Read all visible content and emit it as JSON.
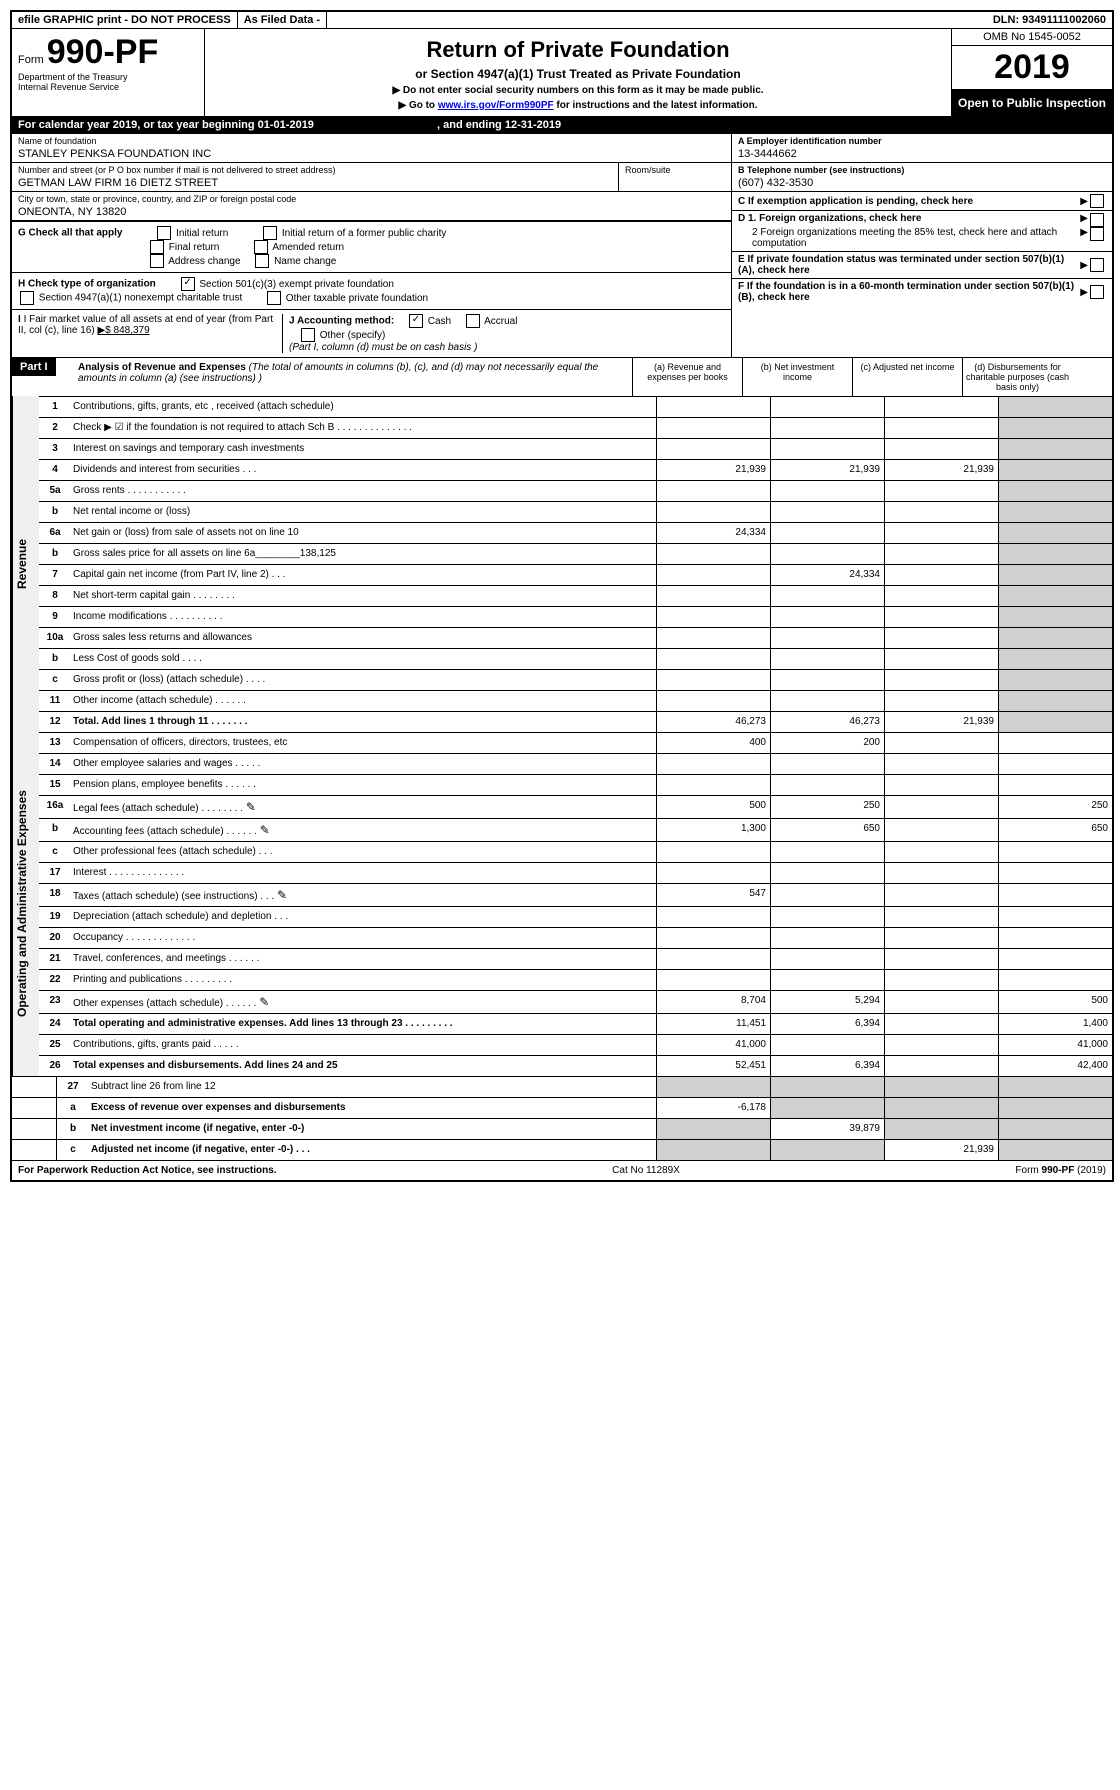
{
  "top_bar": {
    "efile": "efile GRAPHIC print - DO NOT PROCESS",
    "as_filed": "As Filed Data -",
    "dln": "DLN: 93491111002060"
  },
  "header": {
    "form_prefix": "Form",
    "form_number": "990-PF",
    "dept1": "Department of the Treasury",
    "dept2": "Internal Revenue Service",
    "title": "Return of Private Foundation",
    "subtitle": "or Section 4947(a)(1) Trust Treated as Private Foundation",
    "instruction1": "▶ Do not enter social security numbers on this form as it may be made public.",
    "instruction2": "▶ Go to ",
    "instruction_link": "www.irs.gov/Form990PF",
    "instruction3": " for instructions and the latest information.",
    "omb": "OMB No 1545-0052",
    "year": "2019",
    "open_public": "Open to Public Inspection"
  },
  "calendar": {
    "text1": "For calendar year 2019, or tax year beginning ",
    "begin": "01-01-2019",
    "text2": ", and ending ",
    "end": "12-31-2019"
  },
  "info": {
    "name_label": "Name of foundation",
    "name": "STANLEY PENKSA FOUNDATION INC",
    "street_label": "Number and street (or P O  box number if mail is not delivered to street address)",
    "street": "GETMAN LAW FIRM 16 DIETZ STREET",
    "room_label": "Room/suite",
    "city_label": "City or town, state or province, country, and ZIP or foreign postal code",
    "city": "ONEONTA, NY  13820",
    "ein_label": "A Employer identification number",
    "ein": "13-3444662",
    "phone_label": "B Telephone number (see instructions)",
    "phone": "(607) 432-3530",
    "c_label": "C If exemption application is pending, check here",
    "d1_label": "D 1. Foreign organizations, check here",
    "d2_label": "2 Foreign organizations meeting the 85% test, check here and attach computation",
    "e_label": "E If private foundation status was terminated under section 507(b)(1)(A), check here",
    "f_label": "F If the foundation is in a 60-month termination under section 507(b)(1)(B), check here"
  },
  "section_g": {
    "label": "G Check all that apply",
    "opts": [
      "Initial return",
      "Initial return of a former public charity",
      "Final return",
      "Amended return",
      "Address change",
      "Name change"
    ]
  },
  "section_h": {
    "label": "H Check type of organization",
    "opt1": "Section 501(c)(3) exempt private foundation",
    "opt2": "Section 4947(a)(1) nonexempt charitable trust",
    "opt3": "Other taxable private foundation"
  },
  "section_i": {
    "label": "I Fair market value of all assets at end of year (from Part II, col  (c), line 16)",
    "value": "▶$  848,379",
    "j_label": "J Accounting method:",
    "j_cash": "Cash",
    "j_accrual": "Accrual",
    "j_other": "Other (specify)",
    "j_note": "(Part I, column (d) must be on cash basis )"
  },
  "part1": {
    "label": "Part I",
    "title": "Analysis of Revenue and Expenses",
    "note": "(The total of amounts in columns (b), (c), and (d) may not necessarily equal the amounts in column (a) (see instructions) )",
    "col_a": "(a) Revenue and expenses per books",
    "col_b": "(b) Net investment income",
    "col_c": "(c) Adjusted net income",
    "col_d": "(d) Disbursements for charitable purposes (cash basis only)"
  },
  "revenue_label": "Revenue",
  "expenses_label": "Operating and Administrative Expenses",
  "rows": [
    {
      "n": "1",
      "d": "Contributions, gifts, grants, etc , received (attach schedule)",
      "a": "",
      "b": "",
      "c": "",
      "dd": ""
    },
    {
      "n": "2",
      "d": "Check ▶ ☑ if the foundation is not required to attach Sch  B   .  .  .  .  .  .  .  .  .  .  .  .  .  .",
      "a": "",
      "b": "",
      "c": "",
      "dd": ""
    },
    {
      "n": "3",
      "d": "Interest on savings and temporary cash investments",
      "a": "",
      "b": "",
      "c": "",
      "dd": ""
    },
    {
      "n": "4",
      "d": "Dividends and interest from securities   .  .  .",
      "a": "21,939",
      "b": "21,939",
      "c": "21,939",
      "dd": ""
    },
    {
      "n": "5a",
      "d": "Gross rents   .  .  .  .  .  .  .  .  .  .  .",
      "a": "",
      "b": "",
      "c": "",
      "dd": ""
    },
    {
      "n": "b",
      "d": "Net rental income or (loss)  ",
      "a": "",
      "b": "",
      "c": "",
      "dd": ""
    },
    {
      "n": "6a",
      "d": "Net gain or (loss) from sale of assets not on line 10",
      "a": "24,334",
      "b": "",
      "c": "",
      "dd": ""
    },
    {
      "n": "b",
      "d": "Gross sales price for all assets on line 6a________138,125",
      "a": "",
      "b": "",
      "c": "",
      "dd": ""
    },
    {
      "n": "7",
      "d": "Capital gain net income (from Part IV, line 2)  .  .  .",
      "a": "",
      "b": "24,334",
      "c": "",
      "dd": ""
    },
    {
      "n": "8",
      "d": "Net short-term capital gain  .  .  .  .  .  .  .  .",
      "a": "",
      "b": "",
      "c": "",
      "dd": ""
    },
    {
      "n": "9",
      "d": "Income modifications  .  .  .  .  .  .  .  .  .  .",
      "a": "",
      "b": "",
      "c": "",
      "dd": ""
    },
    {
      "n": "10a",
      "d": "Gross sales less returns and allowances",
      "a": "",
      "b": "",
      "c": "",
      "dd": ""
    },
    {
      "n": "b",
      "d": "Less  Cost of goods sold  .  .  .  .",
      "a": "",
      "b": "",
      "c": "",
      "dd": ""
    },
    {
      "n": "c",
      "d": "Gross profit or (loss) (attach schedule)  .  .  .  .",
      "a": "",
      "b": "",
      "c": "",
      "dd": ""
    },
    {
      "n": "11",
      "d": "Other income (attach schedule)  .  .  .  .  .  .",
      "a": "",
      "b": "",
      "c": "",
      "dd": ""
    },
    {
      "n": "12",
      "d": "Total. Add lines 1 through 11   .  .  .  .  .  .  .",
      "a": "46,273",
      "b": "46,273",
      "c": "21,939",
      "dd": "",
      "bold": true
    }
  ],
  "expense_rows": [
    {
      "n": "13",
      "d": "Compensation of officers, directors, trustees, etc",
      "a": "400",
      "b": "200",
      "c": "",
      "dd": ""
    },
    {
      "n": "14",
      "d": "Other employee salaries and wages   .  .  .  .  .",
      "a": "",
      "b": "",
      "c": "",
      "dd": ""
    },
    {
      "n": "15",
      "d": "Pension plans, employee benefits  .  .  .  .  .  .",
      "a": "",
      "b": "",
      "c": "",
      "dd": ""
    },
    {
      "n": "16a",
      "d": "Legal fees (attach schedule) .  .  .  .  .  .  .  .",
      "a": "500",
      "b": "250",
      "c": "",
      "dd": "250",
      "icon": true
    },
    {
      "n": "b",
      "d": "Accounting fees (attach schedule) .  .  .  .  .  .",
      "a": "1,300",
      "b": "650",
      "c": "",
      "dd": "650",
      "icon": true
    },
    {
      "n": "c",
      "d": "Other professional fees (attach schedule)  .  .  .",
      "a": "",
      "b": "",
      "c": "",
      "dd": ""
    },
    {
      "n": "17",
      "d": "Interest  .  .  .  .  .  .  .  .  .  .  .  .  .  .",
      "a": "",
      "b": "",
      "c": "",
      "dd": ""
    },
    {
      "n": "18",
      "d": "Taxes (attach schedule) (see instructions)  .  .  .",
      "a": "547",
      "b": "",
      "c": "",
      "dd": "",
      "icon": true
    },
    {
      "n": "19",
      "d": "Depreciation (attach schedule) and depletion  .  .  .",
      "a": "",
      "b": "",
      "c": "",
      "dd": ""
    },
    {
      "n": "20",
      "d": "Occupancy  .  .  .  .  .  .  .  .  .  .  .  .  .",
      "a": "",
      "b": "",
      "c": "",
      "dd": ""
    },
    {
      "n": "21",
      "d": "Travel, conferences, and meetings .  .  .  .  .  .",
      "a": "",
      "b": "",
      "c": "",
      "dd": ""
    },
    {
      "n": "22",
      "d": "Printing and publications .  .  .  .  .  .  .  .  .",
      "a": "",
      "b": "",
      "c": "",
      "dd": ""
    },
    {
      "n": "23",
      "d": "Other expenses (attach schedule) .  .  .  .  .  .",
      "a": "8,704",
      "b": "5,294",
      "c": "",
      "dd": "500",
      "icon": true
    },
    {
      "n": "24",
      "d": "Total operating and administrative expenses. Add lines 13 through 23  .  .  .  .  .  .  .  .  .",
      "a": "11,451",
      "b": "6,394",
      "c": "",
      "dd": "1,400",
      "bold": true
    },
    {
      "n": "25",
      "d": "Contributions, gifts, grants paid   .  .  .  .  .",
      "a": "41,000",
      "b": "",
      "c": "",
      "dd": "41,000"
    },
    {
      "n": "26",
      "d": "Total expenses and disbursements. Add lines 24 and 25",
      "a": "52,451",
      "b": "6,394",
      "c": "",
      "dd": "42,400",
      "bold": true
    }
  ],
  "summary_rows": [
    {
      "n": "27",
      "d": "Subtract line 26 from line 12",
      "a": "",
      "b": "",
      "c": "",
      "dd": ""
    },
    {
      "n": "a",
      "d": "Excess of revenue over expenses and disbursements",
      "a": "-6,178",
      "b": "",
      "c": "",
      "dd": "",
      "bold": true
    },
    {
      "n": "b",
      "d": "Net investment income (if negative, enter -0-)",
      "a": "",
      "b": "39,879",
      "c": "",
      "dd": "",
      "bold": true
    },
    {
      "n": "c",
      "d": "Adjusted net income (if negative, enter -0-)  .  .  .",
      "a": "",
      "b": "",
      "c": "21,939",
      "dd": "",
      "bold": true
    }
  ],
  "footer": {
    "left": "For Paperwork Reduction Act Notice, see instructions.",
    "center": "Cat  No  11289X",
    "right": "Form 990-PF (2019)"
  }
}
